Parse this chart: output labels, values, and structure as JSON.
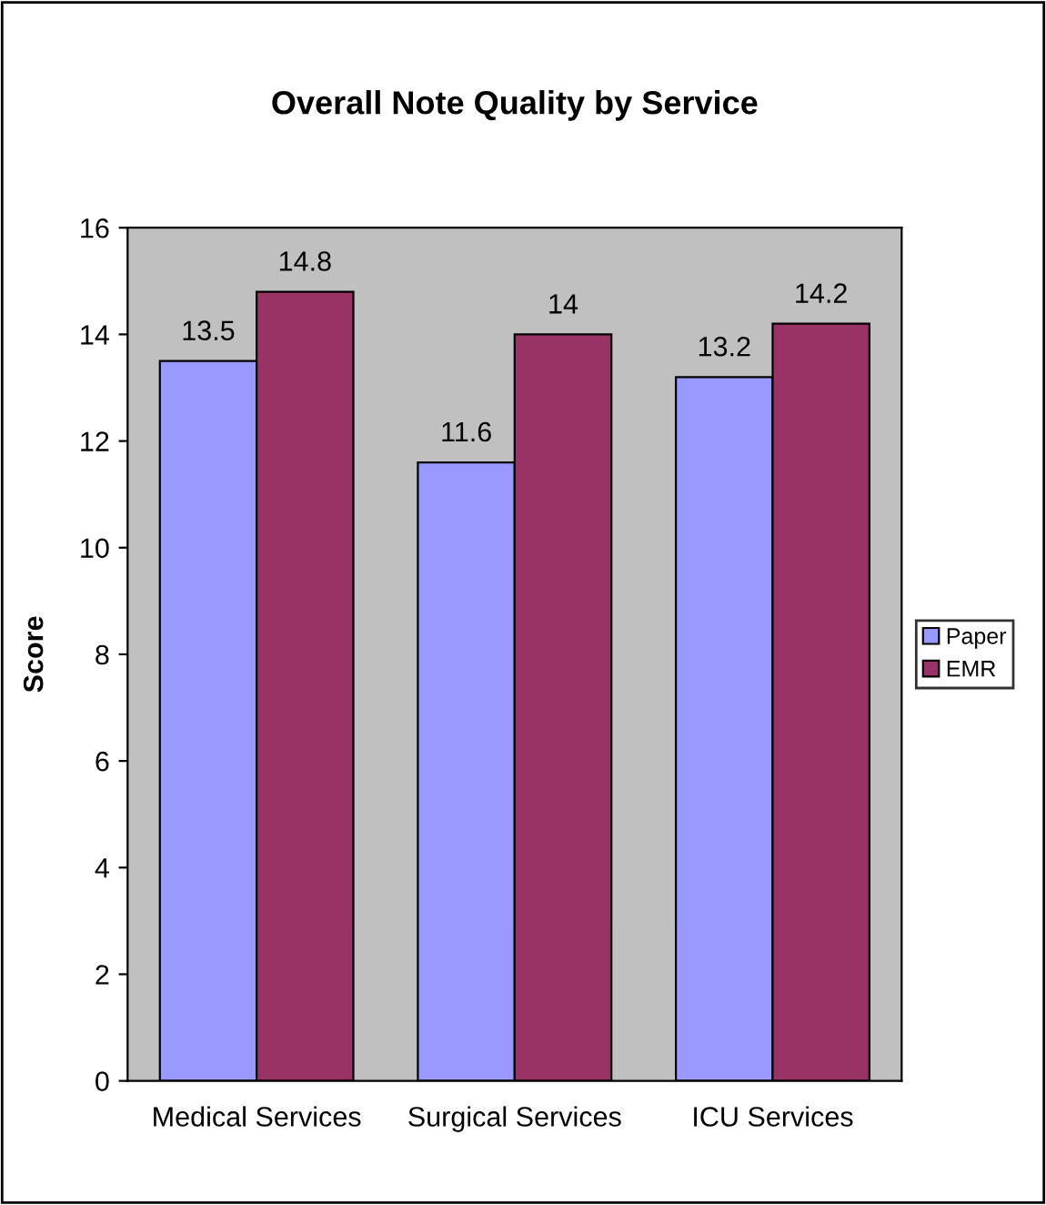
{
  "chart_data": {
    "type": "bar",
    "title": "Overall Note Quality by Service",
    "ylabel": "Score",
    "categories": [
      "Medical Services",
      "Surgical Services",
      "ICU Services"
    ],
    "series": [
      {
        "name": "Paper",
        "color": "#9999ff",
        "values": [
          13.5,
          11.6,
          13.2
        ]
      },
      {
        "name": "EMR",
        "color": "#993366",
        "values": [
          14.8,
          14,
          14.2
        ]
      }
    ],
    "ylim": [
      0,
      16
    ],
    "yticks": [
      0,
      2,
      4,
      6,
      8,
      10,
      12,
      14,
      16
    ],
    "grid": false,
    "legend": "right",
    "data_labels": true
  }
}
